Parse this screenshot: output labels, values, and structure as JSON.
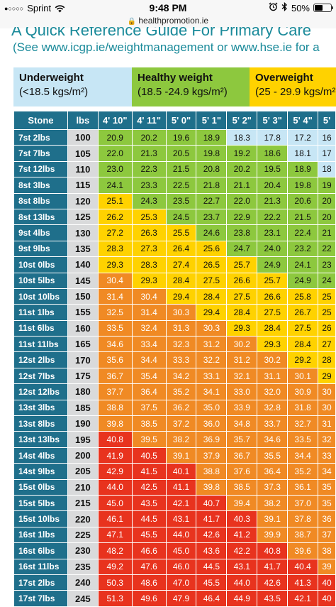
{
  "status_bar": {
    "signal_dots": "●○○○○",
    "carrier": "Sprint",
    "time": "9:48 PM",
    "battery": "50%",
    "icons": [
      "wifi-icon",
      "alarm-icon",
      "bluetooth-icon",
      "battery-icon"
    ]
  },
  "browser": {
    "url": "healthpromotion.ie"
  },
  "document": {
    "title": "A Quick Reference Guide For Primary Care",
    "subtitle": "(See www.icgp.ie/weightmanagement or www.hse.ie for a"
  },
  "categories": [
    {
      "name": "Underweight",
      "range": "(<18.5 kgs/m²)",
      "color": "#c7e6f5"
    },
    {
      "name": "Healthy weight",
      "range": "(18.5 -24.9 kgs/m²)",
      "color": "#8dc83e"
    },
    {
      "name": "Overweight",
      "range": "(25 - 29.9 kgs/m²",
      "color": "#ffd200"
    }
  ],
  "colors": {
    "under": "#c7e6f5",
    "healthy": "#8dc83e",
    "over": "#ffd200",
    "obese1": "#f08a24",
    "obese2": "#e8331e",
    "header": "#1f6f8b",
    "lbs": "#d9dadb"
  },
  "table": {
    "headers": [
      "Stone",
      "lbs",
      "4' 10\"",
      "4' 11\"",
      "5' 0\"",
      "5' 1\"",
      "5' 2\"",
      "5' 3\"",
      "5' 4\"",
      "5'"
    ],
    "rows": [
      {
        "stone": "7st 2lbs",
        "lbs": "100",
        "values": [
          "20.9",
          "20.2",
          "19.6",
          "18.9",
          "18.3",
          "17.8",
          "17.2",
          "16"
        ]
      },
      {
        "stone": "7st 7lbs",
        "lbs": "105",
        "values": [
          "22.0",
          "21.3",
          "20.5",
          "19.8",
          "19.2",
          "18.6",
          "18.1",
          "17"
        ]
      },
      {
        "stone": "7st 12lbs",
        "lbs": "110",
        "values": [
          "23.0",
          "22.3",
          "21.5",
          "20.8",
          "20.2",
          "19.5",
          "18.9",
          "18"
        ]
      },
      {
        "stone": "8st 3lbs",
        "lbs": "115",
        "values": [
          "24.1",
          "23.3",
          "22.5",
          "21.8",
          "21.1",
          "20.4",
          "19.8",
          "19"
        ]
      },
      {
        "stone": "8st 8lbs",
        "lbs": "120",
        "values": [
          "25.1",
          "24.3",
          "23.5",
          "22.7",
          "22.0",
          "21.3",
          "20.6",
          "20"
        ]
      },
      {
        "stone": "8st 13lbs",
        "lbs": "125",
        "values": [
          "26.2",
          "25.3",
          "24.5",
          "23.7",
          "22.9",
          "22.2",
          "21.5",
          "20"
        ]
      },
      {
        "stone": "9st 4lbs",
        "lbs": "130",
        "values": [
          "27.2",
          "26.3",
          "25.5",
          "24.6",
          "23.8",
          "23.1",
          "22.4",
          "21"
        ]
      },
      {
        "stone": "9st 9lbs",
        "lbs": "135",
        "values": [
          "28.3",
          "27.3",
          "26.4",
          "25.6",
          "24.7",
          "24.0",
          "23.2",
          "22"
        ]
      },
      {
        "stone": "10st 0lbs",
        "lbs": "140",
        "values": [
          "29.3",
          "28.3",
          "27.4",
          "26.5",
          "25.7",
          "24.9",
          "24.1",
          "23"
        ]
      },
      {
        "stone": "10st 5lbs",
        "lbs": "145",
        "values": [
          "30.4",
          "29.3",
          "28.4",
          "27.5",
          "26.6",
          "25.7",
          "24.9",
          "24"
        ]
      },
      {
        "stone": "10st 10lbs",
        "lbs": "150",
        "values": [
          "31.4",
          "30.4",
          "29.4",
          "28.4",
          "27.5",
          "26.6",
          "25.8",
          "25"
        ]
      },
      {
        "stone": "11st 1lbs",
        "lbs": "155",
        "values": [
          "32.5",
          "31.4",
          "30.3",
          "29.4",
          "28.4",
          "27.5",
          "26.7",
          "25"
        ]
      },
      {
        "stone": "11st 6lbs",
        "lbs": "160",
        "values": [
          "33.5",
          "32.4",
          "31.3",
          "30.3",
          "29.3",
          "28.4",
          "27.5",
          "26"
        ]
      },
      {
        "stone": "11st 11lbs",
        "lbs": "165",
        "values": [
          "34.6",
          "33.4",
          "32.3",
          "31.2",
          "30.2",
          "29.3",
          "28.4",
          "27"
        ]
      },
      {
        "stone": "12st 2lbs",
        "lbs": "170",
        "values": [
          "35.6",
          "34.4",
          "33.3",
          "32.2",
          "31.2",
          "30.2",
          "29.2",
          "28"
        ]
      },
      {
        "stone": "12st 7lbs",
        "lbs": "175",
        "values": [
          "36.7",
          "35.4",
          "34.2",
          "33.1",
          "32.1",
          "31.1",
          "30.1",
          "29"
        ]
      },
      {
        "stone": "12st 12lbs",
        "lbs": "180",
        "values": [
          "37.7",
          "36.4",
          "35.2",
          "34.1",
          "33.0",
          "32.0",
          "30.9",
          "30"
        ]
      },
      {
        "stone": "13st 3lbs",
        "lbs": "185",
        "values": [
          "38.8",
          "37.5",
          "36.2",
          "35.0",
          "33.9",
          "32.8",
          "31.8",
          "30"
        ]
      },
      {
        "stone": "13st 8lbs",
        "lbs": "190",
        "values": [
          "39.8",
          "38.5",
          "37.2",
          "36.0",
          "34.8",
          "33.7",
          "32.7",
          "31"
        ]
      },
      {
        "stone": "13st 13lbs",
        "lbs": "195",
        "values": [
          "40.8",
          "39.5",
          "38.2",
          "36.9",
          "35.7",
          "34.6",
          "33.5",
          "32"
        ]
      },
      {
        "stone": "14st 4lbs",
        "lbs": "200",
        "values": [
          "41.9",
          "40.5",
          "39.1",
          "37.9",
          "36.7",
          "35.5",
          "34.4",
          "33"
        ]
      },
      {
        "stone": "14st 9lbs",
        "lbs": "205",
        "values": [
          "42.9",
          "41.5",
          "40.1",
          "38.8",
          "37.6",
          "36.4",
          "35.2",
          "34"
        ]
      },
      {
        "stone": "15st 0lbs",
        "lbs": "210",
        "values": [
          "44.0",
          "42.5",
          "41.1",
          "39.8",
          "38.5",
          "37.3",
          "36.1",
          "35"
        ]
      },
      {
        "stone": "15st 5lbs",
        "lbs": "215",
        "values": [
          "45.0",
          "43.5",
          "42.1",
          "40.7",
          "39.4",
          "38.2",
          "37.0",
          "35"
        ]
      },
      {
        "stone": "15st 10lbs",
        "lbs": "220",
        "values": [
          "46.1",
          "44.5",
          "43.1",
          "41.7",
          "40.3",
          "39.1",
          "37.8",
          "36"
        ]
      },
      {
        "stone": "16st 1lbs",
        "lbs": "225",
        "values": [
          "47.1",
          "45.5",
          "44.0",
          "42.6",
          "41.2",
          "39.9",
          "38.7",
          "37"
        ]
      },
      {
        "stone": "16st 6lbs",
        "lbs": "230",
        "values": [
          "48.2",
          "46.6",
          "45.0",
          "43.6",
          "42.2",
          "40.8",
          "39.6",
          "38"
        ]
      },
      {
        "stone": "16st 11lbs",
        "lbs": "235",
        "values": [
          "49.2",
          "47.6",
          "46.0",
          "44.5",
          "43.1",
          "41.7",
          "40.4",
          "39"
        ]
      },
      {
        "stone": "17st 2lbs",
        "lbs": "240",
        "values": [
          "50.3",
          "48.6",
          "47.0",
          "45.5",
          "44.0",
          "42.6",
          "41.3",
          "40"
        ]
      },
      {
        "stone": "17st 7lbs",
        "lbs": "245",
        "values": [
          "51.3",
          "49.6",
          "47.9",
          "46.4",
          "44.9",
          "43.5",
          "42.1",
          "40"
        ]
      }
    ]
  }
}
